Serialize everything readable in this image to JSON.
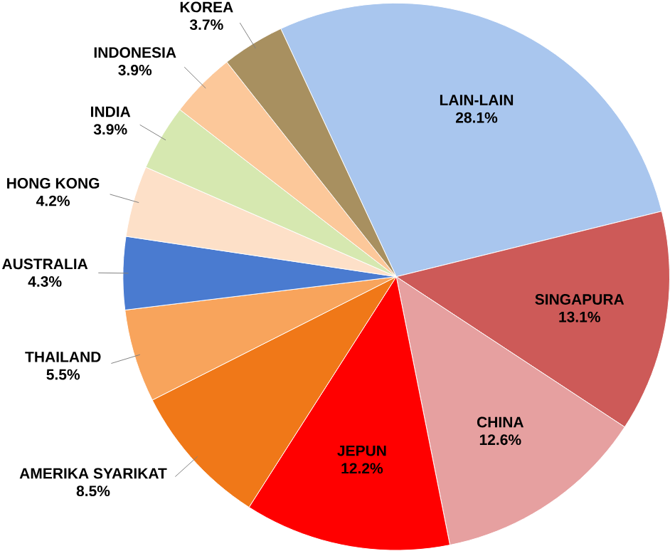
{
  "chart_data": {
    "type": "pie",
    "categories": [
      "LAIN-LAIN",
      "SINGAPURA",
      "CHINA",
      "JEPUN",
      "AMERIKA SYARIKAT",
      "THAILAND",
      "AUSTRALIA",
      "HONG KONG",
      "INDIA",
      "INDONESIA",
      "KOREA"
    ],
    "values": [
      28.1,
      13.1,
      12.6,
      12.2,
      8.5,
      5.5,
      4.3,
      4.2,
      3.9,
      3.9,
      3.7
    ],
    "value_labels": [
      "28.1%",
      "13.1%",
      "12.6%",
      "12.2%",
      "8.5%",
      "5.5%",
      "4.3%",
      "4.2%",
      "3.9%",
      "3.9%",
      "3.7%"
    ],
    "colors": [
      "#a9c6ee",
      "#cd5a58",
      "#e6a0a0",
      "#ff0000",
      "#f07818",
      "#f8a45c",
      "#4a7bd0",
      "#fde0c8",
      "#d6e8b0",
      "#fcc89a",
      "#a89060"
    ],
    "legend": false
  }
}
